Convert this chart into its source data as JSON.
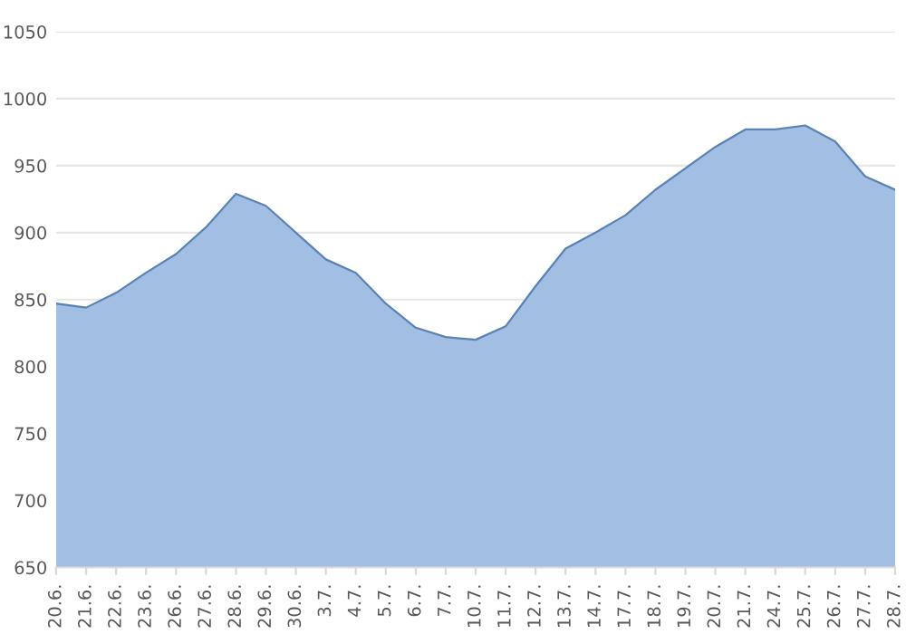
{
  "chart_data": {
    "type": "area",
    "categories": [
      "20.6.",
      "21.6.",
      "22.6.",
      "23.6.",
      "26.6.",
      "27.6.",
      "28.6.",
      "29.6.",
      "30.6.",
      "3.7.",
      "4.7.",
      "5.7.",
      "6.7.",
      "7.7.",
      "10.7.",
      "11.7.",
      "12.7.",
      "13.7.",
      "14.7.",
      "17.7.",
      "18.7.",
      "19.7.",
      "20.7.",
      "21.7.",
      "24.7.",
      "25.7.",
      "26.7.",
      "27.7.",
      "28.7."
    ],
    "series": [
      {
        "color": "#a2bee3",
        "values": [
          847,
          844,
          855,
          870,
          884,
          904,
          929,
          920,
          900,
          880,
          870,
          847,
          829,
          822,
          820,
          830,
          860,
          888,
          900,
          913,
          932,
          948,
          964,
          977,
          977,
          980,
          968,
          942,
          932
        ]
      }
    ],
    "ylim": [
      650,
      1050
    ],
    "yticks": [
      650,
      700,
      750,
      800,
      850,
      900,
      950,
      1000,
      1050
    ],
    "grid": "y",
    "legend": false
  }
}
